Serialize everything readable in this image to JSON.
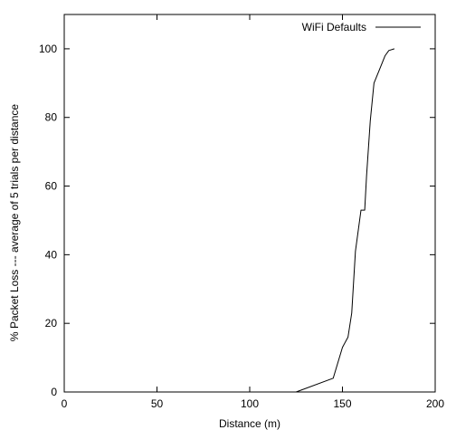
{
  "chart_data": {
    "type": "line",
    "title": "",
    "xlabel": "Distance (m)",
    "ylabel": "% Packet Loss --- average of 5 trials per distance",
    "xlim": [
      0,
      200
    ],
    "ylim": [
      0,
      110
    ],
    "xticks": [
      0,
      50,
      100,
      150,
      200
    ],
    "yticks": [
      0,
      20,
      40,
      60,
      80,
      100
    ],
    "grid": false,
    "legend_position": "top-right",
    "series": [
      {
        "name": "WiFi Defaults",
        "color": "#000000",
        "x": [
          125,
          145,
          150,
          153,
          155,
          157,
          160,
          162,
          163,
          165,
          167,
          170,
          173,
          175,
          178
        ],
        "y": [
          0,
          4,
          13,
          16,
          23,
          41,
          53,
          53,
          63,
          79,
          90,
          94,
          98,
          99.5,
          100
        ]
      }
    ]
  }
}
